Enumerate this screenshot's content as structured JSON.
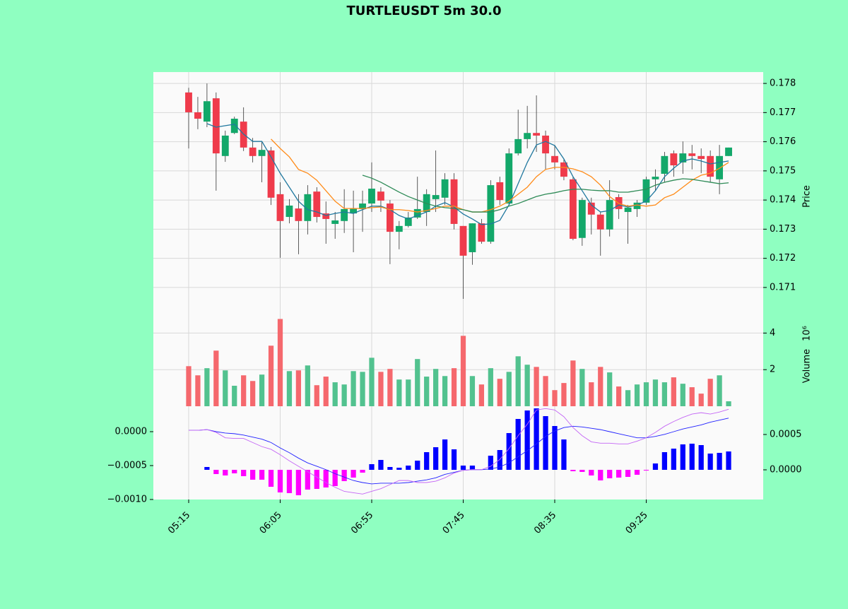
{
  "chart_data": [
    {
      "type": "candlestick",
      "title": "TURTLEUSDT 5m 30.0",
      "ylabel": "Price",
      "up_color": "#13a86a",
      "down_color": "#ef3b4b",
      "grid": true,
      "xlim": [
        -3.86,
        62.78
      ],
      "xticks": [
        {
          "value": 0,
          "label": "05:15"
        },
        {
          "value": 10,
          "label": "06:05"
        },
        {
          "value": 20,
          "label": "06:55"
        },
        {
          "value": 30,
          "label": "07:45"
        },
        {
          "value": 40,
          "label": "08:35"
        },
        {
          "value": 50,
          "label": "09:25"
        }
      ],
      "ylim": [
        0.17044,
        0.17839
      ],
      "yticks": [
        0.171,
        0.172,
        0.173,
        0.174,
        0.175,
        0.176,
        0.177,
        0.178
      ],
      "open": [
        0.17769,
        0.17701,
        0.17669,
        0.17749,
        0.17551,
        0.1763,
        0.17669,
        0.1758,
        0.17551,
        0.1757,
        0.1742,
        0.17342,
        0.17371,
        0.17328,
        0.17429,
        0.17354,
        0.17318,
        0.17328,
        0.17354,
        0.17369,
        0.17388,
        0.17429,
        0.17388,
        0.17291,
        0.17311,
        0.1734,
        0.17359,
        0.17403,
        0.17408,
        0.17471,
        0.17311,
        0.17221,
        0.1732,
        0.17257,
        0.17461,
        0.17388,
        0.1756,
        0.17609,
        0.1763,
        0.17621,
        0.17551,
        0.17529,
        0.17471,
        0.1727,
        0.17391,
        0.1735,
        0.17299,
        0.1741,
        0.17359,
        0.17369,
        0.17391,
        0.17471,
        0.1749,
        0.1756,
        0.17529,
        0.1756,
        0.17551,
        0.17551,
        0.17471,
        0.17551
      ],
      "high": [
        0.17785,
        0.17754,
        0.178,
        0.17769,
        0.17638,
        0.17686,
        0.17718,
        0.17613,
        0.17601,
        0.17582,
        0.17461,
        0.17403,
        0.1742,
        0.17451,
        0.17444,
        0.17395,
        0.17359,
        0.17437,
        0.17432,
        0.17432,
        0.17529,
        0.17444,
        0.174,
        0.17328,
        0.17359,
        0.1748,
        0.17437,
        0.1757,
        0.17492,
        0.17492,
        0.17311,
        0.1732,
        0.17335,
        0.17468,
        0.1748,
        0.17577,
        0.1771,
        0.17723,
        0.17759,
        0.17638,
        0.17589,
        0.17541,
        0.1748,
        0.17408,
        0.17408,
        0.17359,
        0.17468,
        0.1742,
        0.17383,
        0.174,
        0.1748,
        0.17505,
        0.17565,
        0.1757,
        0.17601,
        0.17589,
        0.17577,
        0.1757,
        0.17589,
        0.1758
      ],
      "low": [
        0.17577,
        0.17643,
        0.1765,
        0.17432,
        0.17531,
        0.17626,
        0.17568,
        0.17529,
        0.17461,
        0.17383,
        0.17202,
        0.1732,
        0.17214,
        0.17282,
        0.17323,
        0.1725,
        0.17267,
        0.17287,
        0.17221,
        0.17291,
        0.17359,
        0.17359,
        0.1718,
        0.17231,
        0.17306,
        0.17335,
        0.17311,
        0.17359,
        0.17383,
        0.17299,
        0.17061,
        0.17178,
        0.1725,
        0.1725,
        0.17383,
        0.17383,
        0.17553,
        0.17577,
        0.17565,
        0.17505,
        0.17505,
        0.17468,
        0.17262,
        0.17243,
        0.17282,
        0.17209,
        0.17275,
        0.17335,
        0.1725,
        0.17342,
        0.17383,
        0.17432,
        0.17461,
        0.1748,
        0.1749,
        0.17505,
        0.17492,
        0.17461,
        0.1742,
        0.17551
      ],
      "close": [
        0.17701,
        0.17679,
        0.17739,
        0.1756,
        0.17621,
        0.17679,
        0.1758,
        0.17551,
        0.17572,
        0.17408,
        0.17328,
        0.17381,
        0.17328,
        0.1742,
        0.17342,
        0.17335,
        0.1733,
        0.17369,
        0.17371,
        0.17388,
        0.17439,
        0.17398,
        0.17291,
        0.17311,
        0.1734,
        0.17369,
        0.1742,
        0.17417,
        0.17471,
        0.17318,
        0.17209,
        0.1732,
        0.17257,
        0.17451,
        0.174,
        0.1756,
        0.17609,
        0.1763,
        0.17621,
        0.1756,
        0.17529,
        0.1748,
        0.17267,
        0.174,
        0.1735,
        0.17299,
        0.174,
        0.17369,
        0.17374,
        0.17391,
        0.17471,
        0.1748,
        0.17551,
        0.17519,
        0.1756,
        0.17551,
        0.17541,
        0.1748,
        0.17551,
        0.1758
      ],
      "lines": [
        {
          "color": "#20789f",
          "values": [
            null,
            null,
            0.17662,
            0.1765,
            0.17655,
            0.1766,
            0.17626,
            0.17601,
            0.17601,
            0.17548,
            0.17492,
            0.17444,
            0.17396,
            0.17367,
            0.17359,
            0.17347,
            0.17354,
            0.17359,
            0.17354,
            0.17367,
            0.17379,
            0.17379,
            0.17367,
            0.17347,
            0.17335,
            0.17347,
            0.17359,
            0.17379,
            0.17391,
            0.17376,
            0.17352,
            0.17335,
            0.17316,
            0.17318,
            0.1733,
            0.17383,
            0.17456,
            0.17529,
            0.17589,
            0.17601,
            0.17587,
            0.17541,
            0.1748,
            0.17432,
            0.17383,
            0.17359,
            0.17364,
            0.17383,
            0.17376,
            0.17383,
            0.17396,
            0.17432,
            0.1748,
            0.17509,
            0.17534,
            0.17541,
            0.17534,
            0.17524,
            0.17529,
            0.17534
          ]
        },
        {
          "color": "#ff8c1a",
          "values": [
            null,
            null,
            null,
            null,
            null,
            null,
            null,
            null,
            null,
            0.17609,
            0.17577,
            0.17548,
            0.17505,
            0.17492,
            0.17468,
            0.17432,
            0.17396,
            0.17371,
            0.17371,
            0.17371,
            0.17374,
            0.17376,
            0.17367,
            0.17367,
            0.17364,
            0.17359,
            0.17364,
            0.17371,
            0.17379,
            0.17379,
            0.17367,
            0.17359,
            0.17359,
            0.17367,
            0.17379,
            0.17396,
            0.1742,
            0.17444,
            0.1748,
            0.17505,
            0.17512,
            0.17512,
            0.17507,
            0.17497,
            0.1748,
            0.17451,
            0.17412,
            0.17388,
            0.17379,
            0.17383,
            0.17379,
            0.17383,
            0.17408,
            0.1742,
            0.17444,
            0.17468,
            0.17485,
            0.17492,
            0.17509,
            0.17529
          ]
        },
        {
          "color": "#2e8b57",
          "values": [
            null,
            null,
            null,
            null,
            null,
            null,
            null,
            null,
            null,
            null,
            null,
            null,
            null,
            null,
            null,
            null,
            null,
            null,
            null,
            0.17485,
            0.17475,
            0.17461,
            0.17444,
            0.17427,
            0.17412,
            0.174,
            0.17388,
            0.17379,
            0.17374,
            0.17371,
            0.17367,
            0.17359,
            0.17359,
            0.17359,
            0.17367,
            0.17379,
            0.17388,
            0.174,
            0.17412,
            0.1742,
            0.17425,
            0.17432,
            0.17437,
            0.17437,
            0.17434,
            0.17432,
            0.17432,
            0.17427,
            0.17427,
            0.17432,
            0.17437,
            0.17451,
            0.17461,
            0.17468,
            0.17473,
            0.17471,
            0.17466,
            0.17461,
            0.17456,
            0.17459
          ]
        }
      ]
    },
    {
      "type": "bar",
      "ylabel": "Volume",
      "scale_label": "10⁶",
      "up_color": "#52c28f",
      "down_color": "#f5686d",
      "grid": true,
      "ylim": [
        0,
        5.6
      ],
      "yticks": [
        2,
        4
      ],
      "values": [
        2.19,
        1.69,
        2.08,
        3.04,
        1.96,
        1.12,
        1.69,
        1.38,
        1.73,
        3.31,
        4.77,
        1.92,
        1.96,
        2.23,
        1.15,
        1.62,
        1.31,
        1.19,
        1.92,
        1.88,
        2.65,
        1.88,
        2.04,
        1.46,
        1.46,
        2.58,
        1.62,
        2.04,
        1.65,
        2.08,
        3.85,
        1.65,
        1.19,
        2.08,
        1.5,
        1.88,
        2.73,
        2.27,
        2.15,
        1.65,
        0.88,
        1.27,
        2.5,
        2.04,
        1.31,
        2.15,
        1.85,
        1.08,
        0.88,
        1.19,
        1.31,
        1.46,
        1.31,
        1.58,
        1.23,
        1.04,
        0.69,
        1.5,
        1.69,
        0.27
      ]
    },
    {
      "type": "macd",
      "pos_color": "#0000ff",
      "neg_color": "#ff00ff",
      "ylim": [
        -0.001,
        0.000375
      ],
      "yticks": [
        {
          "value": -0.001,
          "label": "−0.0010"
        },
        {
          "value": -0.0005,
          "label": "−0.0005"
        },
        {
          "value": 0,
          "label": "0.0000"
        }
      ],
      "y2lim": [
        -0.00042,
        0.0009
      ],
      "y2ticks": [
        {
          "value": 0,
          "label": "0.0000"
        },
        {
          "value": 0.0005,
          "label": "0.0005"
        }
      ],
      "histogram": {
        "axis": "y2",
        "values": [
          0,
          0,
          4e-05,
          -6e-05,
          -8e-05,
          -5e-05,
          -9e-05,
          -0.00014,
          -0.00014,
          -0.00024,
          -0.00032,
          -0.00033,
          -0.00036,
          -0.00028,
          -0.00027,
          -0.00025,
          -0.00023,
          -0.00016,
          -0.00011,
          -4e-05,
          8e-05,
          0.00014,
          4e-05,
          3e-05,
          6e-05,
          0.00013,
          0.00025,
          0.00032,
          0.00043,
          0.00029,
          6e-05,
          6e-05,
          0,
          0.0002,
          0.00028,
          0.00052,
          0.00072,
          0.00084,
          0.00087,
          0.00076,
          0.00062,
          0.00043,
          -2e-05,
          -3e-05,
          -8e-05,
          -0.00015,
          -0.00012,
          -0.00011,
          -0.0001,
          -7e-05,
          -1e-05,
          9e-05,
          0.00025,
          0.0003,
          0.00036,
          0.00037,
          0.00035,
          0.00023,
          0.00024,
          0.00026
        ]
      },
      "lines": [
        {
          "color": "#2020ff",
          "values": [
            2e-05,
            2e-05,
            3e-05,
            0,
            -2e-05,
            -3e-05,
            -5e-05,
            -8e-05,
            -0.00011,
            -0.00016,
            -0.00024,
            -0.00031,
            -0.00039,
            -0.00046,
            -0.00051,
            -0.00056,
            -0.00062,
            -0.00067,
            -0.00072,
            -0.00075,
            -0.00077,
            -0.00076,
            -0.00076,
            -0.00076,
            -0.00075,
            -0.00073,
            -0.00071,
            -0.00068,
            -0.00063,
            -0.0006,
            -0.00057,
            -0.00056,
            -0.00056,
            -0.00055,
            -0.00052,
            -0.00046,
            -0.00037,
            -0.00028,
            -0.00018,
            -7e-05,
            1e-05,
            6e-05,
            8e-05,
            7e-05,
            5e-05,
            3e-05,
            0,
            -3e-05,
            -6e-05,
            -9e-05,
            -9e-05,
            -7e-05,
            -4e-05,
            0,
            4e-05,
            7e-05,
            0.0001,
            0.00014,
            0.00017,
            0.0002
          ]
        },
        {
          "color": "#c466f5",
          "values": [
            2e-05,
            2e-05,
            3e-05,
            -1e-05,
            -9e-05,
            -0.0001,
            -0.0001,
            -0.00016,
            -0.00022,
            -0.00026,
            -0.00034,
            -0.00043,
            -0.00051,
            -0.00059,
            -0.00067,
            -0.00075,
            -0.00082,
            -0.00088,
            -0.0009,
            -0.00092,
            -0.00088,
            -0.00084,
            -0.00078,
            -0.00072,
            -0.00072,
            -0.00075,
            -0.00075,
            -0.00073,
            -0.00068,
            -0.00061,
            -0.00057,
            -0.00056,
            -0.00056,
            -0.00051,
            -0.00041,
            -0.00025,
            -6e-05,
            0.00011,
            0.00032,
            0.00034,
            0.00032,
            0.00022,
            6e-05,
            -6e-05,
            -0.00015,
            -0.00017,
            -0.00017,
            -0.00018,
            -0.00018,
            -0.00014,
            -9e-05,
            -1e-05,
            8e-05,
            0.00015,
            0.00021,
            0.00026,
            0.00028,
            0.00026,
            0.00029,
            0.00033
          ]
        }
      ]
    }
  ]
}
